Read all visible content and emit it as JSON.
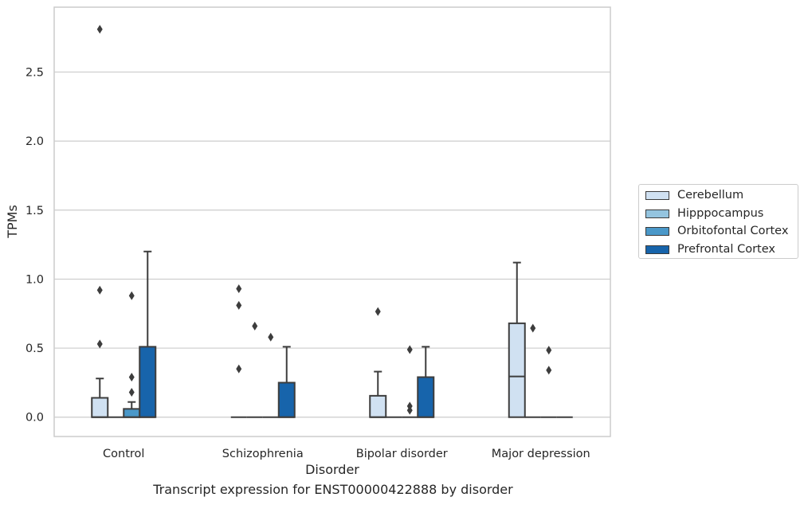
{
  "caption": "Transcript expression for ENST00000422888 by disorder",
  "chart_data": {
    "type": "box",
    "xlabel": "Disorder",
    "ylabel": "TPMs",
    "ylim": [
      -0.14,
      2.97
    ],
    "yticks": [
      0.0,
      0.5,
      1.0,
      1.5,
      2.0,
      2.5
    ],
    "ytick_labels": [
      "0.0",
      "0.5",
      "1.0",
      "1.5",
      "2.0",
      "2.5"
    ],
    "grid": "horizontal",
    "legend_position": "right",
    "categories": [
      "Control",
      "Schizophrenia",
      "Bipolar disorder",
      "Major depression"
    ],
    "series": [
      {
        "name": "Cerebellum",
        "color": "#d0e1f2",
        "boxes": [
          {
            "q1": 0,
            "median": 0,
            "q3": 0.14,
            "whisker_low": 0,
            "whisker_high": 0.28,
            "outliers": [
              0.53,
              0.92,
              2.81
            ]
          },
          {
            "q1": 0,
            "median": 0,
            "q3": 0,
            "whisker_low": 0,
            "whisker_high": 0,
            "outliers": [
              0.35,
              0.81,
              0.93
            ]
          },
          {
            "q1": 0,
            "median": 0,
            "q3": 0.155,
            "whisker_low": 0,
            "whisker_high": 0.33,
            "outliers": [
              0.765
            ]
          },
          {
            "q1": 0,
            "median": 0.295,
            "q3": 0.68,
            "whisker_low": 0,
            "whisker_high": 1.12,
            "outliers": []
          }
        ]
      },
      {
        "name": "Hipppocampus",
        "color": "#94c4df",
        "boxes": [
          {
            "q1": 0,
            "median": 0,
            "q3": 0,
            "whisker_low": 0,
            "whisker_high": 0,
            "outliers": []
          },
          {
            "q1": 0,
            "median": 0,
            "q3": 0,
            "whisker_low": 0,
            "whisker_high": 0,
            "outliers": [
              0.66
            ]
          },
          {
            "q1": 0,
            "median": 0,
            "q3": 0,
            "whisker_low": 0,
            "whisker_high": 0,
            "outliers": []
          },
          {
            "q1": 0,
            "median": 0,
            "q3": 0,
            "whisker_low": 0,
            "whisker_high": 0,
            "outliers": [
              0.645
            ]
          }
        ]
      },
      {
        "name": "Orbitofontal Cortex",
        "color": "#4a98c9",
        "boxes": [
          {
            "q1": 0,
            "median": 0,
            "q3": 0.06,
            "whisker_low": 0,
            "whisker_high": 0.11,
            "outliers": [
              0.18,
              0.29,
              0.88
            ]
          },
          {
            "q1": 0,
            "median": 0,
            "q3": 0,
            "whisker_low": 0,
            "whisker_high": 0,
            "outliers": [
              0.58
            ]
          },
          {
            "q1": 0,
            "median": 0,
            "q3": 0,
            "whisker_low": 0,
            "whisker_high": 0,
            "outliers": [
              0.05,
              0.08,
              0.49
            ]
          },
          {
            "q1": 0,
            "median": 0,
            "q3": 0,
            "whisker_low": 0,
            "whisker_high": 0,
            "outliers": [
              0.34,
              0.485
            ]
          }
        ]
      },
      {
        "name": "Prefrontal Cortex",
        "color": "#1764ab",
        "boxes": [
          {
            "q1": 0,
            "median": 0,
            "q3": 0.51,
            "whisker_low": 0,
            "whisker_high": 1.2,
            "outliers": []
          },
          {
            "q1": 0,
            "median": 0,
            "q3": 0.25,
            "whisker_low": 0,
            "whisker_high": 0.51,
            "outliers": []
          },
          {
            "q1": 0,
            "median": 0,
            "q3": 0.29,
            "whisker_low": 0,
            "whisker_high": 0.51,
            "outliers": []
          },
          {
            "q1": 0,
            "median": 0,
            "q3": 0,
            "whisker_low": 0,
            "whisker_high": 0,
            "outliers": []
          }
        ]
      }
    ]
  }
}
